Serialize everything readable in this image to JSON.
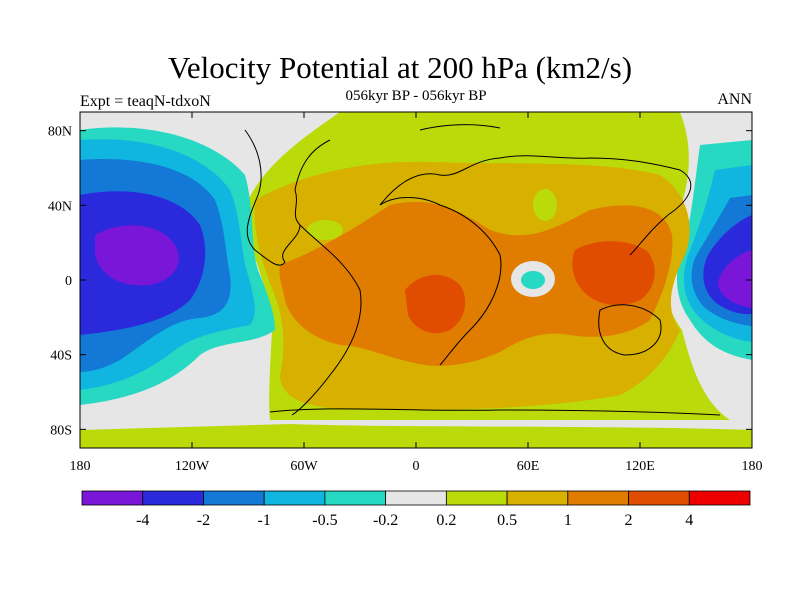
{
  "title": "Velocity Potential at 200 hPa (km2/s)",
  "subtitle": "056kyr BP - 056kyr BP",
  "left_label": "Expt = teaqN-tdxoN",
  "right_label": "ANN",
  "axes": {
    "lat_ticks": [
      "80N",
      "40N",
      "0",
      "40S",
      "80S"
    ],
    "lat_values": [
      80,
      40,
      0,
      -40,
      -80
    ],
    "lon_ticks": [
      "180",
      "120W",
      "60W",
      "0",
      "60E",
      "120E",
      "180"
    ],
    "lon_values": [
      -180,
      -120,
      -60,
      0,
      60,
      120,
      180
    ]
  },
  "colorbar": {
    "colors": [
      "#7a16d8",
      "#2a2adc",
      "#1478d6",
      "#11b6e0",
      "#27d8c2",
      "#e6e6e6",
      "#bbda0a",
      "#d8b000",
      "#e07c00",
      "#e04c00",
      "#ee0000"
    ],
    "labels": [
      "-4",
      "-2",
      "-1",
      "-0.5",
      "-0.2",
      "0.2",
      "0.5",
      "1",
      "2",
      "4"
    ]
  }
}
